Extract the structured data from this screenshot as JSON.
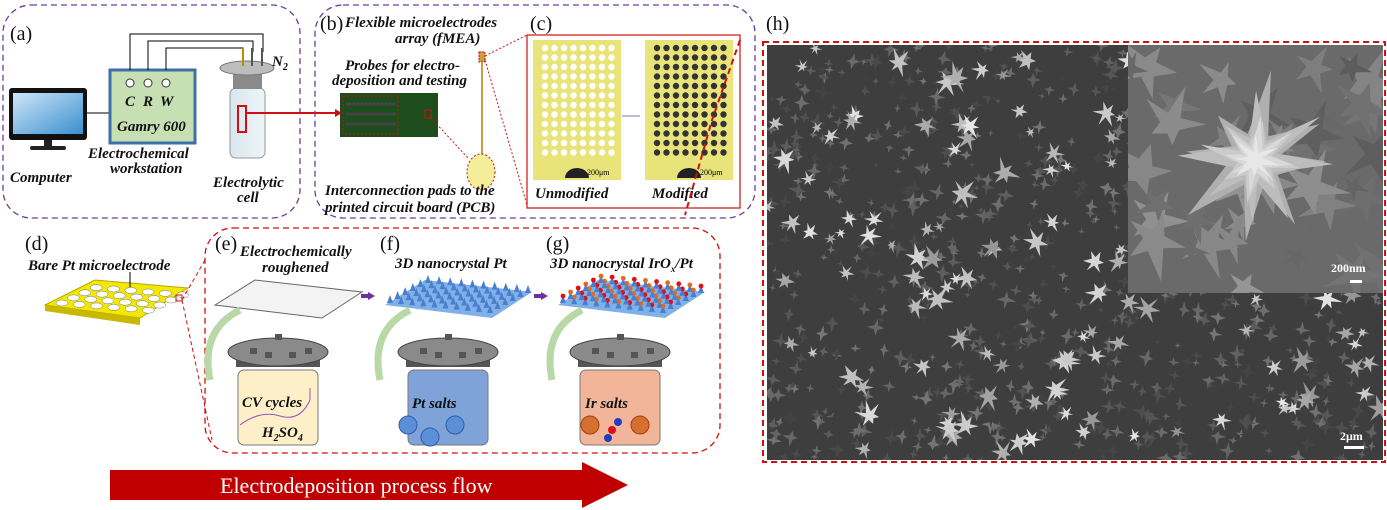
{
  "panels": {
    "a": {
      "label": "(a)",
      "gas": "N",
      "gas_sub": "2",
      "terminals": [
        "C",
        "R",
        "W"
      ],
      "instrument": "Gamry 600",
      "computer": "Computer",
      "workstation_1": "Electrochemical",
      "workstation_2": "workstation",
      "cell_1": "Electrolytic",
      "cell_2": "cell"
    },
    "b": {
      "label": "(b)",
      "fmea_1": "Flexible microelectrodes",
      "fmea_2": "array (fMEA)",
      "probes_1": "Probes for electro-",
      "probes_2": "deposition and testing",
      "pads_1": "Interconnection pads to  the",
      "pads_2": "printed circuit board (PCB)"
    },
    "c": {
      "label": "(c)",
      "left_caption": "Unmodified",
      "right_caption": "Modified",
      "scale": "200μm"
    },
    "d": {
      "label": "(d)",
      "title": "Bare Pt microelectrode"
    },
    "e": {
      "label": "(e)",
      "title_1": "Electrochemically",
      "title_2": "roughened",
      "cv": "CV cycles",
      "acid": "H",
      "acid_sub1": "2",
      "acid_mid": "SO",
      "acid_sub2": "4"
    },
    "f": {
      "label": "(f)",
      "title": "3D nanocrystal Pt",
      "salt": "Pt salts"
    },
    "g": {
      "label": "(g)",
      "title_pre": "3D nanocrystal IrO",
      "title_sub": "x",
      "title_post": "/Pt",
      "salt": "Ir salts"
    },
    "h": {
      "label": "(h)",
      "inset_scale": "200nm",
      "main_scale": "2μm"
    }
  },
  "flow_arrow": "Electrodeposition process flow",
  "colors": {
    "purple_dash": "#6a3d9a",
    "red": "#d01010",
    "arrow": "#c00000",
    "gold": "#e6e000",
    "blue_salt": "#7fa3d9",
    "orange_salt": "#f2b59a"
  }
}
